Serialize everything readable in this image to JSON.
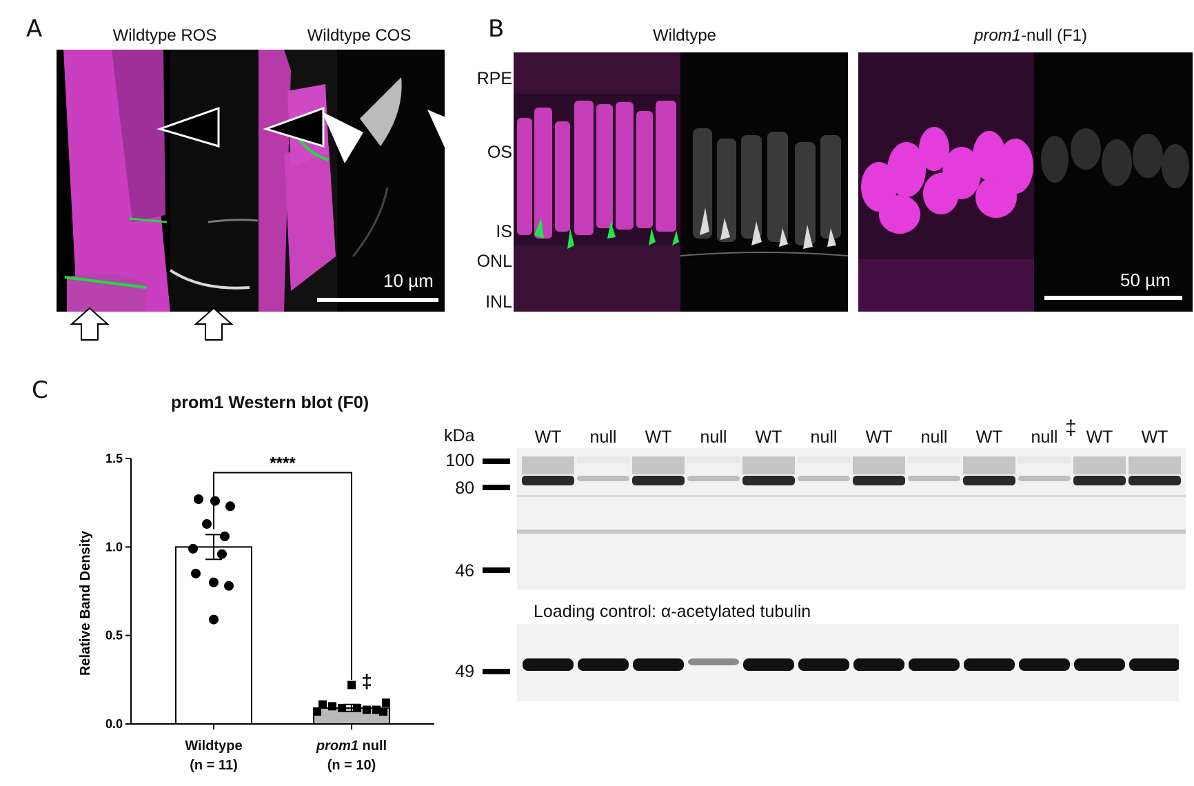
{
  "panel_labels": {
    "a": "A",
    "b": "B",
    "c": "C"
  },
  "panel_a": {
    "headers": [
      "Wildtype ROS",
      "Wildtype COS"
    ],
    "scale_bar": "10 µm"
  },
  "panel_b": {
    "headers": {
      "wildtype": "Wildtype",
      "null_italic": "prom1",
      "null_rest": "-null (F1)"
    },
    "layers": [
      "RPE",
      "OS",
      "IS",
      "ONL",
      "INL"
    ],
    "scale_bar": "50 µm"
  },
  "panel_c": {
    "chart_title": "prom1 Western blot (F0)",
    "significance": "****",
    "dagger": "‡",
    "x_labels": [
      {
        "line1": "Wildtype",
        "line1_italic": "",
        "line2": "(n = 11)"
      },
      {
        "line1": " null",
        "line1_italic": "prom1",
        "line2": "(n = 10)"
      }
    ]
  },
  "chart_data": {
    "type": "bar",
    "title": "prom1 Western blot (F0)",
    "ylabel": "Relative Band Density",
    "ylim": [
      0,
      1.5
    ],
    "yticks": [
      "0.0",
      "0.5",
      "1.0",
      "1.5"
    ],
    "categories": [
      "Wildtype",
      "prom1 null"
    ],
    "values": [
      1.0,
      0.09
    ],
    "error": [
      0.07,
      0.02
    ],
    "points": [
      [
        1.27,
        1.26,
        1.23,
        1.13,
        1.06,
        0.99,
        0.96,
        0.85,
        0.8,
        0.78,
        0.59
      ],
      [
        0.22,
        0.12,
        0.11,
        0.1,
        0.09,
        0.09,
        0.08,
        0.08,
        0.07,
        0.07
      ]
    ],
    "annotations": [
      "****",
      "‡"
    ]
  },
  "blot": {
    "kda_label": "kDa",
    "lanes": [
      "WT",
      "null",
      "WT",
      "null",
      "WT",
      "null",
      "WT",
      "null",
      "WT",
      "null",
      "WT",
      "WT"
    ],
    "lane_dagger": "‡",
    "mw_markers": [
      "100",
      "80",
      "46"
    ],
    "loading_label": "Loading control: α-acetylated tubulin",
    "loading_mw": "49"
  }
}
